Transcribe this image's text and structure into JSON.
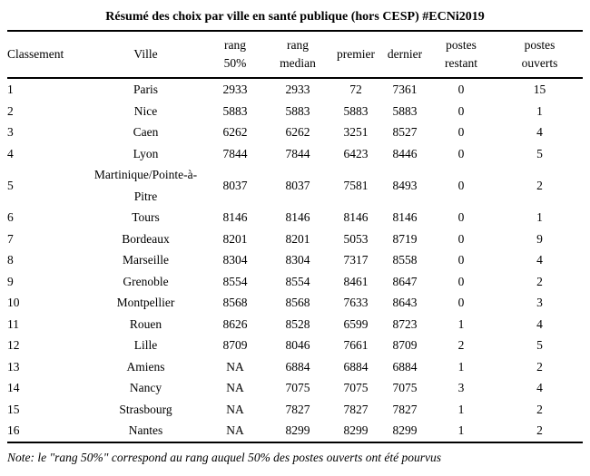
{
  "title": "Résumé des choix par ville en santé publique (hors CESP) #ECNi2019",
  "table": {
    "headers": [
      "Classement",
      "Ville",
      "rang\n50%",
      "rang\nmedian",
      "premier",
      "dernier",
      "postes\nrestant",
      "postes\nouverts"
    ],
    "column_keys": [
      "classement",
      "ville",
      "rang-50",
      "rang-median",
      "premier",
      "dernier",
      "postes-restant",
      "postes-ouverts"
    ],
    "rows": [
      [
        "1",
        "Paris",
        "2933",
        "2933",
        "72",
        "7361",
        "0",
        "15"
      ],
      [
        "2",
        "Nice",
        "5883",
        "5883",
        "5883",
        "5883",
        "0",
        "1"
      ],
      [
        "3",
        "Caen",
        "6262",
        "6262",
        "3251",
        "8527",
        "0",
        "4"
      ],
      [
        "4",
        "Lyon",
        "7844",
        "7844",
        "6423",
        "8446",
        "0",
        "5"
      ],
      [
        "5",
        "Martinique/Pointe-à-Pitre",
        "8037",
        "8037",
        "7581",
        "8493",
        "0",
        "2"
      ],
      [
        "6",
        "Tours",
        "8146",
        "8146",
        "8146",
        "8146",
        "0",
        "1"
      ],
      [
        "7",
        "Bordeaux",
        "8201",
        "8201",
        "5053",
        "8719",
        "0",
        "9"
      ],
      [
        "8",
        "Marseille",
        "8304",
        "8304",
        "7317",
        "8558",
        "0",
        "4"
      ],
      [
        "9",
        "Grenoble",
        "8554",
        "8554",
        "8461",
        "8647",
        "0",
        "2"
      ],
      [
        "10",
        "Montpellier",
        "8568",
        "8568",
        "7633",
        "8643",
        "0",
        "3"
      ],
      [
        "11",
        "Rouen",
        "8626",
        "8528",
        "6599",
        "8723",
        "1",
        "4"
      ],
      [
        "12",
        "Lille",
        "8709",
        "8046",
        "7661",
        "8709",
        "2",
        "5"
      ],
      [
        "13",
        "Amiens",
        "NA",
        "6884",
        "6884",
        "6884",
        "1",
        "2"
      ],
      [
        "14",
        "Nancy",
        "NA",
        "7075",
        "7075",
        "7075",
        "3",
        "4"
      ],
      [
        "15",
        "Strasbourg",
        "NA",
        "7827",
        "7827",
        "7827",
        "1",
        "2"
      ],
      [
        "16",
        "Nantes",
        "NA",
        "8299",
        "8299",
        "8299",
        "1",
        "2"
      ]
    ]
  },
  "note": "Note: le \"rang 50%\" correspond au rang auquel 50% des postes ouverts ont été pourvus",
  "colors": {
    "text": "#000000",
    "background": "#ffffff",
    "rule": "#000000"
  }
}
